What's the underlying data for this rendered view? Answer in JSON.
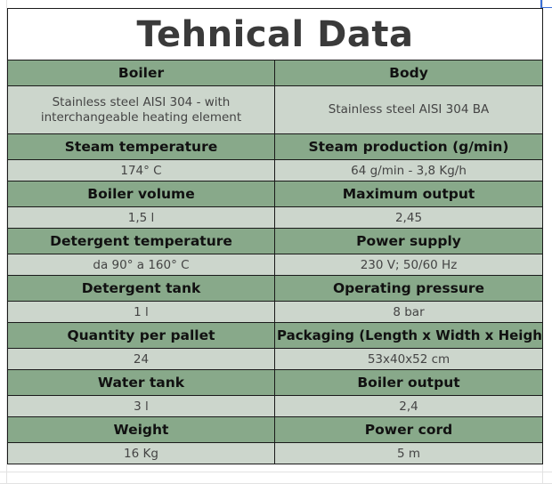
{
  "title": "Tehnical Data",
  "rows": [
    {
      "left_label": "Boiler",
      "right_label": "Body",
      "left_value": "Stainless steel AISI 304 - with interchangeable heating element",
      "right_value": "Stainless steel AISI 304 BA"
    },
    {
      "left_label": "Steam temperature",
      "right_label": "Steam production (g/min)",
      "left_value": "174° C",
      "right_value": "64 g/min - 3,8 Kg/h"
    },
    {
      "left_label": "Boiler volume",
      "right_label": "Maximum output",
      "left_value": "1,5 l",
      "right_value": "2,45"
    },
    {
      "left_label": "Detergent temperature",
      "right_label": "Power supply",
      "left_value": "da 90° a 160° C",
      "right_value": "230 V; 50/60 Hz"
    },
    {
      "left_label": "Detergent tank",
      "right_label": "Operating pressure",
      "left_value": "1 l",
      "right_value": "8 bar"
    },
    {
      "left_label": "Quantity per pallet",
      "right_label": "Packaging (Length x Width x Height)",
      "left_value": "24",
      "right_value": "53x40x52 cm"
    },
    {
      "left_label": "Water tank",
      "right_label": "Boiler output",
      "left_value": "3 l",
      "right_value": "2,4"
    },
    {
      "left_label": "Weight",
      "right_label": "Power cord",
      "left_value": "16 Kg",
      "right_value": "5 m"
    }
  ]
}
